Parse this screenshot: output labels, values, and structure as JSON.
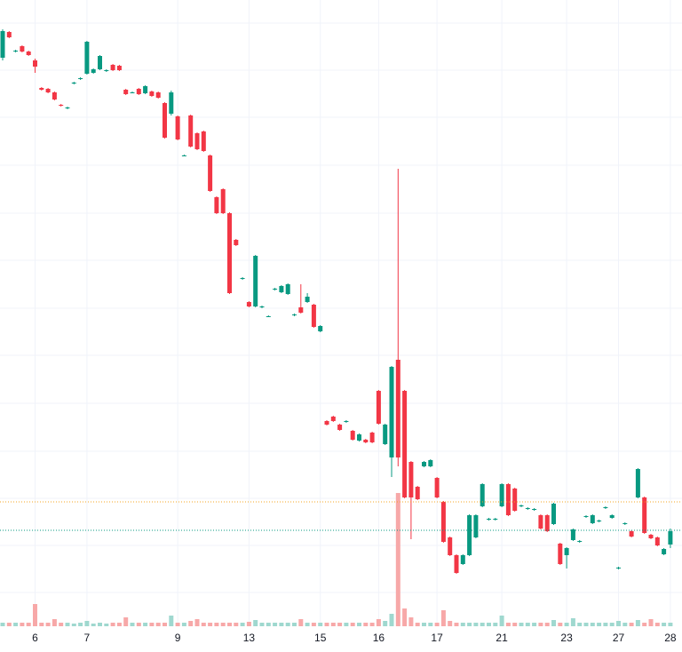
{
  "chart_data": {
    "type": "candlestick",
    "categories": [
      null,
      null,
      null,
      null,
      null,
      "6",
      null,
      null,
      null,
      null,
      null,
      null,
      null,
      "7",
      null,
      null,
      null,
      null,
      null,
      null,
      null,
      null,
      null,
      null,
      null,
      null,
      null,
      "9",
      null,
      null,
      null,
      null,
      null,
      null,
      null,
      null,
      null,
      null,
      "13",
      null,
      null,
      null,
      null,
      null,
      null,
      null,
      null,
      null,
      null,
      "15",
      null,
      null,
      null,
      null,
      null,
      null,
      null,
      null,
      "16",
      null,
      null,
      null,
      null,
      null,
      null,
      null,
      null,
      "17",
      null,
      null,
      null,
      null,
      null,
      null,
      null,
      null,
      null,
      "21",
      null,
      null,
      null,
      null,
      null,
      null,
      null,
      null,
      null,
      "23",
      null,
      null,
      null,
      null,
      null,
      null,
      null,
      "27",
      null,
      null,
      null,
      null,
      null,
      null,
      null,
      "28"
    ],
    "open": [
      640,
      669,
      647,
      653,
      647,
      637,
      606,
      605,
      601,
      587,
      583,
      611,
      616,
      622,
      623,
      627,
      625,
      632,
      631,
      604,
      601,
      605,
      600,
      602,
      601,
      589,
      577,
      574,
      530,
      575,
      555,
      557,
      530,
      483,
      492,
      465,
      435,
      391,
      365,
      360,
      359,
      349,
      379,
      376,
      374,
      350,
      359,
      365,
      362,
      332,
      231,
      236,
      227,
      230,
      220,
      209,
      210,
      218,
      265,
      205,
      190,
      300,
      265,
      185,
      157,
      180,
      180,
      167,
      140,
      100,
      80,
      70,
      80,
      100,
      135,
      120,
      120,
      135,
      160,
      155,
      135,
      132,
      131,
      125,
      125,
      115,
      93,
      80,
      97,
      95,
      123,
      116,
      118,
      133,
      122,
      65,
      115,
      107,
      145,
      145,
      103,
      100,
      81,
      92
    ],
    "high": [
      672,
      670,
      649,
      654,
      648,
      639,
      607,
      606,
      602,
      588,
      585,
      613,
      618,
      659,
      628,
      643,
      627,
      633,
      632,
      605,
      602,
      606,
      609,
      603,
      602,
      590,
      603,
      575,
      531,
      576,
      556,
      558,
      531,
      484,
      493,
      466,
      436,
      393,
      366,
      418,
      361,
      350,
      381,
      384,
      386,
      352,
      385,
      375,
      363,
      339,
      232,
      237,
      228,
      232,
      221,
      217,
      211,
      219,
      266,
      228,
      293,
      515,
      266,
      186,
      158,
      186,
      188,
      168,
      141,
      101,
      81,
      81,
      126,
      126,
      161,
      122,
      122,
      161,
      161,
      156,
      137,
      134,
      133,
      126,
      126,
      139,
      94,
      89,
      110,
      97,
      125,
      126,
      120,
      135,
      126,
      67,
      117,
      108,
      178,
      146,
      104,
      101,
      88,
      110
    ],
    "low": [
      637,
      662,
      646,
      646,
      642,
      623,
      603,
      600,
      592,
      585,
      582,
      610,
      615,
      621,
      622,
      626,
      624,
      625,
      625,
      598,
      600,
      598,
      599,
      596,
      594,
      549,
      575,
      547,
      529,
      539,
      536,
      534,
      489,
      464,
      464,
      374,
      428,
      390,
      359,
      359,
      358,
      348,
      378,
      375,
      373,
      349,
      352,
      364,
      336,
      331,
      226,
      230,
      220,
      229,
      209,
      208,
      206,
      206,
      227,
      204,
      168,
      180,
      144,
      98,
      142,
      179,
      179,
      144,
      94,
      79,
      59,
      69,
      79,
      99,
      134,
      119,
      119,
      134,
      124,
      129,
      134,
      131,
      130,
      109,
      106,
      114,
      69,
      65,
      96,
      94,
      122,
      115,
      117,
      132,
      121,
      64,
      114,
      100,
      144,
      104,
      98,
      90,
      80,
      88
    ],
    "close": [
      670,
      663,
      648,
      647,
      643,
      630,
      604,
      601,
      593,
      586,
      584,
      612,
      617,
      658,
      627,
      642,
      626,
      626,
      626,
      599,
      601,
      599,
      608,
      597,
      595,
      550,
      601,
      548,
      530,
      540,
      537,
      535,
      490,
      465,
      465,
      375,
      429,
      392,
      360,
      417,
      360,
      349,
      380,
      383,
      385,
      351,
      353,
      371,
      337,
      338,
      227,
      231,
      221,
      231,
      210,
      216,
      207,
      207,
      228,
      227,
      292,
      190,
      145,
      145,
      143,
      185,
      187,
      145,
      95,
      80,
      60,
      80,
      125,
      125,
      160,
      121,
      121,
      160,
      125,
      130,
      136,
      133,
      132,
      110,
      107,
      138,
      70,
      88,
      109,
      96,
      124,
      125,
      119,
      134,
      125,
      66,
      116,
      101,
      177,
      105,
      99,
      91,
      87,
      107
    ],
    "volume": [
      4,
      4,
      4,
      4,
      4,
      25,
      4,
      4,
      8,
      4,
      4,
      3,
      4,
      6,
      3,
      4,
      3,
      4,
      4,
      10,
      4,
      4,
      4,
      4,
      4,
      4,
      12,
      4,
      4,
      6,
      8,
      4,
      4,
      4,
      4,
      4,
      4,
      4,
      5,
      7,
      4,
      4,
      4,
      4,
      4,
      4,
      8,
      4,
      4,
      4,
      4,
      4,
      4,
      4,
      4,
      4,
      4,
      4,
      8,
      6,
      14,
      150,
      20,
      10,
      4,
      4,
      4,
      4,
      18,
      6,
      4,
      4,
      4,
      4,
      4,
      4,
      4,
      12,
      4,
      4,
      4,
      4,
      4,
      4,
      4,
      7,
      4,
      4,
      9,
      4,
      4,
      4,
      4,
      4,
      4,
      6,
      4,
      4,
      7,
      4,
      8,
      4,
      4,
      4
    ],
    "up_color": "#089981",
    "down_color": "#f23645",
    "volume_up_color": "#9fd8cf",
    "volume_down_color": "#f7a8a8",
    "ylim": [
      0,
      705
    ],
    "ygrid": [
      38,
      91,
      144,
      197,
      251,
      305,
      358,
      412,
      465,
      519,
      573,
      626,
      679
    ],
    "price_lines": [
      {
        "value": 140,
        "color": "#f5a623"
      },
      {
        "value": 108,
        "color": "#089981"
      }
    ],
    "grid": true
  }
}
